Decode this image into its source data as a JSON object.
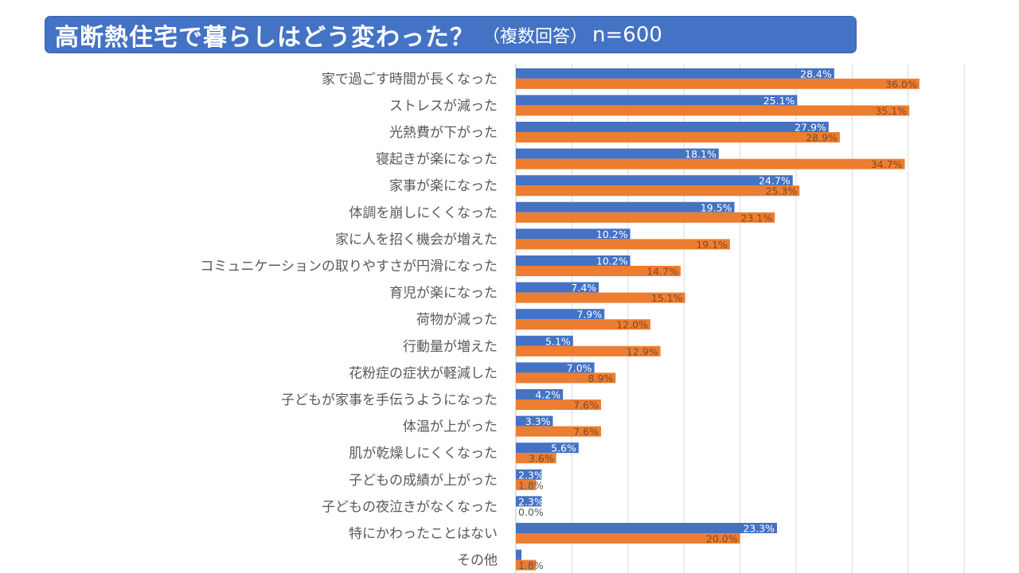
{
  "header": {
    "title": "高断熱住宅で暮らしはどう変わった？",
    "subtitle": "（複数回答）",
    "sample": "n=600"
  },
  "colors": {
    "series1": "#4472c4",
    "series2": "#ed7d31",
    "label1": "#ffffff",
    "label2": "#7f4a20",
    "label_outside": "#595959",
    "grid": "#d9d9d9",
    "title_bg": "#4472c4"
  },
  "chart_data": {
    "type": "bar",
    "orientation": "horizontal",
    "title": "高断熱住宅で暮らしはどう変わった？（複数回答）n=600",
    "xlabel": "",
    "ylabel": "",
    "xlim": [
      0,
      40
    ],
    "grid": true,
    "legend": "none",
    "categories": [
      "家で過ごす時間が長くなった",
      "ストレスが減った",
      "光熱費が下がった",
      "寝起きが楽になった",
      "家事が楽になった",
      "体調を崩しにくくなった",
      "家に人を招く機会が増えた",
      "コミュニケーションの取りやすさが円滑になった",
      "育児が楽になった",
      "荷物が減った",
      "行動量が増えた",
      "花粉症の症状が軽減した",
      "子どもが家事を手伝うようになった",
      "体温が上がった",
      "肌が乾燥しにくくなった",
      "子どもの成績が上がった",
      "子どもの夜泣きがなくなった",
      "特にかわったことはない",
      "その他"
    ],
    "series": [
      {
        "name": "series1",
        "values": [
          28.4,
          25.1,
          27.9,
          18.1,
          24.7,
          19.5,
          10.2,
          10.2,
          7.4,
          7.9,
          5.1,
          7.0,
          4.2,
          3.3,
          5.6,
          2.3,
          2.3,
          23.3,
          0.5
        ],
        "labels": [
          "28.4%",
          "25.1%",
          "27.9%",
          "18.1%",
          "24.7%",
          "19.5%",
          "10.2%",
          "10.2%",
          "7.4%",
          "7.9%",
          "5.1%",
          "7.0%",
          "4.2%",
          "3.3%",
          "5.6%",
          "2.3%",
          "2.3%",
          "23.3%",
          ""
        ]
      },
      {
        "name": "series2",
        "values": [
          36.0,
          35.1,
          28.9,
          34.7,
          25.3,
          23.1,
          19.1,
          14.7,
          15.1,
          12.0,
          12.9,
          8.9,
          7.6,
          7.6,
          3.6,
          1.8,
          0.0,
          20.0,
          1.8
        ],
        "labels": [
          "36.0%",
          "35.1%",
          "28.9%",
          "34.7%",
          "25.3%",
          "23.1%",
          "19.1%",
          "14.7%",
          "15.1%",
          "12.0%",
          "12.9%",
          "8.9%",
          "7.6%",
          "7.6%",
          "3.6%",
          "1.8%",
          "0.0%",
          "20.0%",
          "1.8%"
        ]
      }
    ]
  }
}
